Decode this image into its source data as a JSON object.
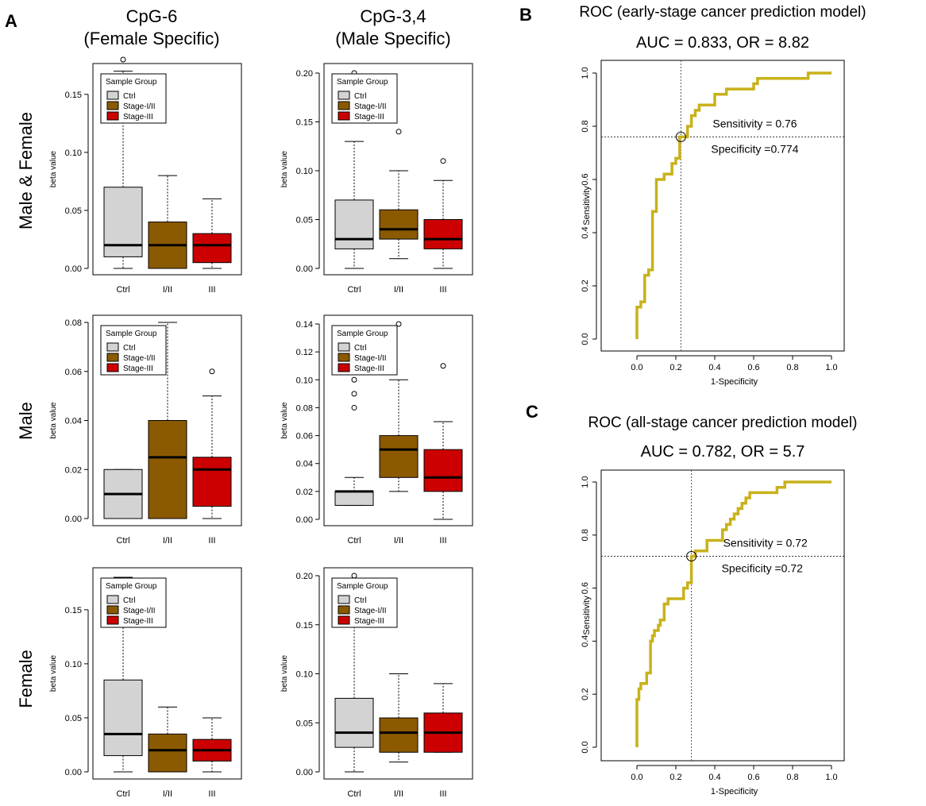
{
  "panel_labels": {
    "a": "A",
    "b": "B",
    "c": "C"
  },
  "panel_a": {
    "column_titles": [
      [
        "CpG-6",
        "(Female Specific)"
      ],
      [
        "CpG-3,4",
        "(Male Specific)"
      ]
    ],
    "row_labels": [
      "Male & Female",
      "Male",
      "Female"
    ]
  },
  "chart_data": [
    {
      "id": "bp-mf-cpg6",
      "type": "box",
      "ylabel": "beta value",
      "categories": [
        "Ctrl",
        "I/II",
        "III"
      ],
      "ylim": [
        0,
        0.18
      ],
      "yticks": [
        0,
        0.05,
        0.1,
        0.15
      ],
      "tick_labels": [
        "0.00",
        "0.05",
        "0.10",
        "0.15"
      ],
      "legend": {
        "title": "Sample Group",
        "entries": [
          "Ctrl",
          "Stage-I/II",
          "Stage-III"
        ],
        "colors": [
          "#d3d3d3",
          "#8b5a00",
          "#cc0000"
        ],
        "placement": "top-left"
      },
      "boxes": [
        {
          "q1": 0.01,
          "median": 0.02,
          "q3": 0.07,
          "whisker_low": 0.0,
          "whisker_high": 0.17,
          "outliers": [
            0.18
          ]
        },
        {
          "q1": 0.0,
          "median": 0.02,
          "q3": 0.04,
          "whisker_low": 0.0,
          "whisker_high": 0.08,
          "outliers": []
        },
        {
          "q1": 0.005,
          "median": 0.02,
          "q3": 0.03,
          "whisker_low": 0.0,
          "whisker_high": 0.06,
          "outliers": []
        }
      ]
    },
    {
      "id": "bp-mf-cpg34",
      "type": "box",
      "ylabel": "beta value",
      "categories": [
        "Ctrl",
        "I/II",
        "III"
      ],
      "ylim": [
        0,
        0.2
      ],
      "yticks": [
        0,
        0.05,
        0.1,
        0.15,
        0.2
      ],
      "tick_labels": [
        "0.00",
        "0.05",
        "0.10",
        "0.15",
        "0.20"
      ],
      "legend": {
        "title": "Sample Group",
        "entries": [
          "Ctrl",
          "Stage-I/II",
          "Stage-III"
        ],
        "colors": [
          "#d3d3d3",
          "#8b5a00",
          "#cc0000"
        ],
        "placement": "top-left"
      },
      "boxes": [
        {
          "q1": 0.02,
          "median": 0.03,
          "q3": 0.07,
          "whisker_low": 0.0,
          "whisker_high": 0.13,
          "outliers": [
            0.2
          ]
        },
        {
          "q1": 0.03,
          "median": 0.04,
          "q3": 0.06,
          "whisker_low": 0.01,
          "whisker_high": 0.1,
          "outliers": [
            0.14
          ]
        },
        {
          "q1": 0.02,
          "median": 0.03,
          "q3": 0.05,
          "whisker_low": 0.0,
          "whisker_high": 0.09,
          "outliers": [
            0.11
          ]
        }
      ]
    },
    {
      "id": "bp-m-cpg6",
      "type": "box",
      "ylabel": "beta value",
      "categories": [
        "Ctrl",
        "I/II",
        "III"
      ],
      "ylim": [
        0,
        0.08
      ],
      "yticks": [
        0,
        0.02,
        0.04,
        0.06,
        0.08
      ],
      "tick_labels": [
        "0.00",
        "0.02",
        "0.04",
        "0.06",
        "0.08"
      ],
      "legend": {
        "title": "Sample Group",
        "entries": [
          "Ctrl",
          "Stage-I/II",
          "Stage-III"
        ],
        "colors": [
          "#d3d3d3",
          "#8b5a00",
          "#cc0000"
        ],
        "placement": "top-left"
      },
      "boxes": [
        {
          "q1": 0.0,
          "median": 0.01,
          "q3": 0.02,
          "whisker_low": 0.0,
          "whisker_high": 0.02,
          "outliers": []
        },
        {
          "q1": 0.0,
          "median": 0.025,
          "q3": 0.04,
          "whisker_low": 0.0,
          "whisker_high": 0.08,
          "outliers": []
        },
        {
          "q1": 0.005,
          "median": 0.02,
          "q3": 0.025,
          "whisker_low": 0.0,
          "whisker_high": 0.05,
          "outliers": [
            0.06
          ]
        }
      ]
    },
    {
      "id": "bp-m-cpg34",
      "type": "box",
      "ylabel": "beta value",
      "categories": [
        "Ctrl",
        "I/II",
        "III"
      ],
      "ylim": [
        0,
        0.14
      ],
      "yticks": [
        0,
        0.02,
        0.04,
        0.06,
        0.08,
        0.1,
        0.12,
        0.14
      ],
      "tick_labels": [
        "0.00",
        "0.02",
        "0.04",
        "0.06",
        "0.08",
        "0.10",
        "0.12",
        "0.14"
      ],
      "legend": {
        "title": "Sample Group",
        "entries": [
          "Ctrl",
          "Stage-I/II",
          "Stage-III"
        ],
        "colors": [
          "#d3d3d3",
          "#8b5a00",
          "#cc0000"
        ],
        "placement": "top-left"
      },
      "boxes": [
        {
          "q1": 0.01,
          "median": 0.02,
          "q3": 0.02,
          "whisker_low": 0.01,
          "whisker_high": 0.03,
          "outliers": [
            0.08,
            0.09,
            0.1
          ]
        },
        {
          "q1": 0.03,
          "median": 0.05,
          "q3": 0.06,
          "whisker_low": 0.02,
          "whisker_high": 0.1,
          "outliers": [
            0.14
          ]
        },
        {
          "q1": 0.02,
          "median": 0.03,
          "q3": 0.05,
          "whisker_low": 0.0,
          "whisker_high": 0.07,
          "outliers": [
            0.11
          ]
        }
      ]
    },
    {
      "id": "bp-f-cpg6",
      "type": "box",
      "ylabel": "beta value",
      "categories": [
        "Ctrl",
        "I/II",
        "III"
      ],
      "ylim": [
        0,
        0.18
      ],
      "yticks": [
        0,
        0.05,
        0.1,
        0.15
      ],
      "tick_labels": [
        "0.00",
        "0.05",
        "0.10",
        "0.15"
      ],
      "legend": {
        "title": "Sample Group",
        "entries": [
          "Ctrl",
          "Stage-I/II",
          "Stage-III"
        ],
        "colors": [
          "#d3d3d3",
          "#8b5a00",
          "#cc0000"
        ],
        "placement": "top-left"
      },
      "boxes": [
        {
          "q1": 0.015,
          "median": 0.035,
          "q3": 0.085,
          "whisker_low": 0.0,
          "whisker_high": 0.18,
          "outliers": []
        },
        {
          "q1": 0.0,
          "median": 0.02,
          "q3": 0.035,
          "whisker_low": 0.0,
          "whisker_high": 0.06,
          "outliers": []
        },
        {
          "q1": 0.01,
          "median": 0.02,
          "q3": 0.03,
          "whisker_low": 0.0,
          "whisker_high": 0.05,
          "outliers": []
        }
      ]
    },
    {
      "id": "bp-f-cpg34",
      "type": "box",
      "ylabel": "beta value",
      "categories": [
        "Ctrl",
        "I/II",
        "III"
      ],
      "ylim": [
        0,
        0.2
      ],
      "yticks": [
        0,
        0.05,
        0.1,
        0.15,
        0.2
      ],
      "tick_labels": [
        "0.00",
        "0.05",
        "0.10",
        "0.15",
        "0.20"
      ],
      "legend": {
        "title": "Sample Group",
        "entries": [
          "Ctrl",
          "Stage-I/II",
          "Stage-III"
        ],
        "colors": [
          "#d3d3d3",
          "#8b5a00",
          "#cc0000"
        ],
        "placement": "top-left"
      },
      "boxes": [
        {
          "q1": 0.025,
          "median": 0.04,
          "q3": 0.075,
          "whisker_low": 0.0,
          "whisker_high": 0.19,
          "outliers": [
            0.2
          ]
        },
        {
          "q1": 0.02,
          "median": 0.04,
          "q3": 0.055,
          "whisker_low": 0.01,
          "whisker_high": 0.1,
          "outliers": []
        },
        {
          "q1": 0.02,
          "median": 0.04,
          "q3": 0.06,
          "whisker_low": 0.02,
          "whisker_high": 0.09,
          "outliers": []
        }
      ]
    },
    {
      "id": "roc-early",
      "type": "line",
      "title": "ROC (early-stage cancer prediction model)",
      "subtitle": "AUC = 0.833, OR = 8.82",
      "xlabel": "1-Specificity",
      "ylabel": "Sensitivity",
      "xlim": [
        0,
        1
      ],
      "ylim": [
        0,
        1
      ],
      "ticks": [
        0,
        0.2,
        0.4,
        0.6,
        0.8,
        1.0
      ],
      "tick_labels": [
        "0.0",
        "0.2",
        "0.4",
        "0.6",
        "0.8",
        "1.0"
      ],
      "line_color": "#c9b11a",
      "cutoff": {
        "x": 0.226,
        "y": 0.76
      },
      "annotations": [
        "Sensitivity = 0.76",
        "Specificity =0.774"
      ],
      "points": [
        [
          0,
          0
        ],
        [
          0,
          0.12
        ],
        [
          0.02,
          0.12
        ],
        [
          0.02,
          0.14
        ],
        [
          0.04,
          0.14
        ],
        [
          0.04,
          0.24
        ],
        [
          0.06,
          0.24
        ],
        [
          0.06,
          0.26
        ],
        [
          0.08,
          0.26
        ],
        [
          0.08,
          0.48
        ],
        [
          0.1,
          0.48
        ],
        [
          0.1,
          0.6
        ],
        [
          0.14,
          0.6
        ],
        [
          0.14,
          0.62
        ],
        [
          0.18,
          0.62
        ],
        [
          0.18,
          0.66
        ],
        [
          0.2,
          0.66
        ],
        [
          0.2,
          0.68
        ],
        [
          0.22,
          0.68
        ],
        [
          0.22,
          0.76
        ],
        [
          0.26,
          0.76
        ],
        [
          0.26,
          0.8
        ],
        [
          0.28,
          0.8
        ],
        [
          0.28,
          0.84
        ],
        [
          0.3,
          0.84
        ],
        [
          0.3,
          0.86
        ],
        [
          0.32,
          0.86
        ],
        [
          0.32,
          0.88
        ],
        [
          0.4,
          0.88
        ],
        [
          0.4,
          0.92
        ],
        [
          0.46,
          0.92
        ],
        [
          0.46,
          0.94
        ],
        [
          0.6,
          0.94
        ],
        [
          0.6,
          0.96
        ],
        [
          0.62,
          0.96
        ],
        [
          0.62,
          0.98
        ],
        [
          0.88,
          0.98
        ],
        [
          0.88,
          1.0
        ],
        [
          1.0,
          1.0
        ]
      ]
    },
    {
      "id": "roc-all",
      "type": "line",
      "title": "ROC (all-stage cancer prediction model)",
      "subtitle": "AUC = 0.782, OR = 5.7",
      "xlabel": "1-Specificity",
      "ylabel": "Sensitivity",
      "xlim": [
        0,
        1
      ],
      "ylim": [
        0,
        1
      ],
      "ticks": [
        0,
        0.2,
        0.4,
        0.6,
        0.8,
        1.0
      ],
      "tick_labels": [
        "0.0",
        "0.2",
        "0.4",
        "0.6",
        "0.8",
        "1.0"
      ],
      "line_color": "#c9b11a",
      "cutoff": {
        "x": 0.28,
        "y": 0.72
      },
      "annotations": [
        "Sensitivity = 0.72",
        "Specificity =0.72"
      ],
      "points": [
        [
          0,
          0
        ],
        [
          0,
          0.18
        ],
        [
          0.01,
          0.18
        ],
        [
          0.01,
          0.22
        ],
        [
          0.02,
          0.22
        ],
        [
          0.02,
          0.24
        ],
        [
          0.05,
          0.24
        ],
        [
          0.05,
          0.28
        ],
        [
          0.07,
          0.28
        ],
        [
          0.07,
          0.4
        ],
        [
          0.08,
          0.4
        ],
        [
          0.08,
          0.42
        ],
        [
          0.09,
          0.42
        ],
        [
          0.09,
          0.44
        ],
        [
          0.11,
          0.44
        ],
        [
          0.11,
          0.46
        ],
        [
          0.12,
          0.46
        ],
        [
          0.12,
          0.48
        ],
        [
          0.14,
          0.48
        ],
        [
          0.14,
          0.54
        ],
        [
          0.16,
          0.54
        ],
        [
          0.16,
          0.56
        ],
        [
          0.24,
          0.56
        ],
        [
          0.24,
          0.6
        ],
        [
          0.26,
          0.6
        ],
        [
          0.26,
          0.62
        ],
        [
          0.28,
          0.62
        ],
        [
          0.28,
          0.72
        ],
        [
          0.3,
          0.72
        ],
        [
          0.3,
          0.74
        ],
        [
          0.36,
          0.74
        ],
        [
          0.36,
          0.78
        ],
        [
          0.44,
          0.78
        ],
        [
          0.44,
          0.82
        ],
        [
          0.46,
          0.82
        ],
        [
          0.46,
          0.84
        ],
        [
          0.48,
          0.84
        ],
        [
          0.48,
          0.86
        ],
        [
          0.5,
          0.86
        ],
        [
          0.5,
          0.88
        ],
        [
          0.52,
          0.88
        ],
        [
          0.52,
          0.9
        ],
        [
          0.54,
          0.9
        ],
        [
          0.54,
          0.92
        ],
        [
          0.56,
          0.92
        ],
        [
          0.56,
          0.94
        ],
        [
          0.58,
          0.94
        ],
        [
          0.58,
          0.96
        ],
        [
          0.72,
          0.96
        ],
        [
          0.72,
          0.98
        ],
        [
          0.76,
          0.98
        ],
        [
          0.76,
          1.0
        ],
        [
          1.0,
          1.0
        ]
      ]
    }
  ]
}
